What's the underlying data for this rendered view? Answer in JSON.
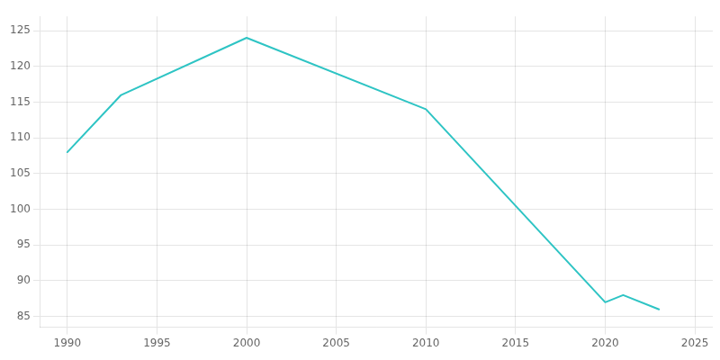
{
  "chart_data": {
    "type": "line",
    "x": [
      1990,
      1993,
      2000,
      2010,
      2020,
      2021,
      2023
    ],
    "values": [
      108,
      116,
      124,
      114,
      87,
      88,
      86
    ],
    "color": "#2EC4C4",
    "xlim": [
      1988.5,
      2026
    ],
    "ylim": [
      83.5,
      127
    ],
    "xticks": [
      1990,
      1995,
      2000,
      2005,
      2010,
      2015,
      2020,
      2025
    ],
    "yticks": [
      85,
      90,
      95,
      100,
      105,
      110,
      115,
      120,
      125
    ],
    "grid": true
  }
}
